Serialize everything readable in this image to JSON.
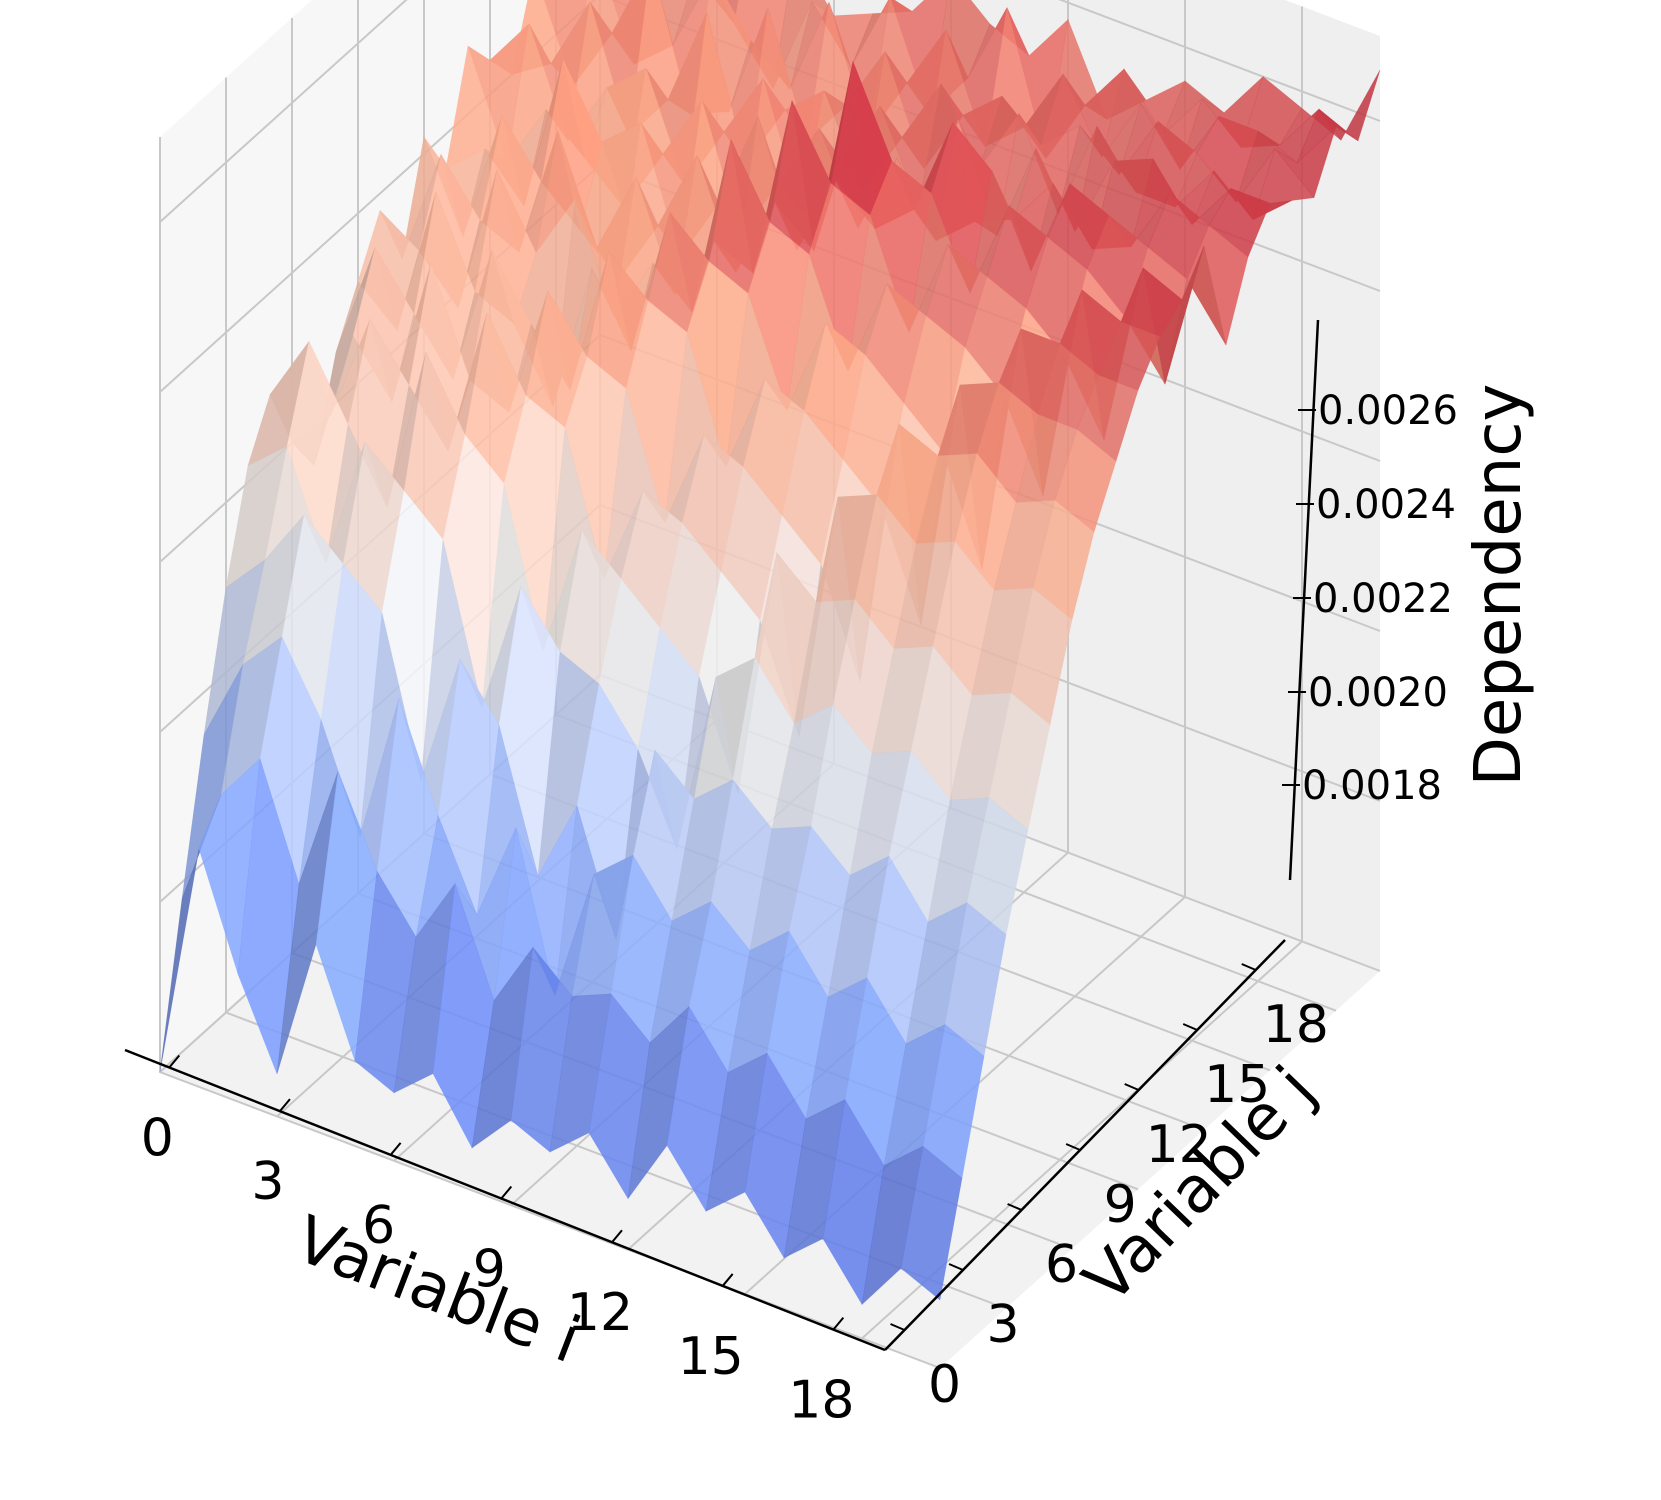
{
  "chart_data": {
    "type": "surface3d",
    "colormap": "coolwarm",
    "xlabel": "Variable i",
    "ylabel": "Variable j",
    "zlabel": "Dependency",
    "x_ticks": [
      "0",
      "3",
      "6",
      "9",
      "12",
      "15",
      "18"
    ],
    "y_ticks": [
      "0",
      "3",
      "6",
      "9",
      "12",
      "15",
      "18"
    ],
    "z_ticks": [
      "0.0018",
      "0.0020",
      "0.0022",
      "0.0024",
      "0.0026"
    ],
    "x": [
      0,
      1,
      2,
      3,
      4,
      5,
      6,
      7,
      8,
      9,
      10,
      11,
      12,
      13,
      14,
      15,
      16,
      17,
      18,
      19,
      20
    ],
    "y": [
      0,
      1,
      2,
      3,
      4,
      5,
      6,
      7,
      8,
      9,
      10,
      11,
      12,
      13,
      14,
      15,
      16,
      17,
      18,
      19,
      20
    ],
    "zlim": [
      0.0016,
      0.0027
    ],
    "z": [
      [
        0.0016,
        0.00178,
        0.00195,
        0.0021,
        0.00222,
        0.00228,
        0.0022,
        0.00215,
        0.00226,
        0.00232,
        0.00238,
        0.0023,
        0.00242,
        0.00236,
        0.00248,
        0.00244,
        0.0024,
        0.0025,
        0.00246,
        0.00254,
        0.00258
      ],
      [
        0.00188,
        0.00192,
        0.00205,
        0.00215,
        0.00226,
        0.00236,
        0.00225,
        0.00232,
        0.0024,
        0.00228,
        0.00235,
        0.00244,
        0.00232,
        0.0024,
        0.00236,
        0.0025,
        0.00243,
        0.00238,
        0.00252,
        0.00248,
        0.00256
      ],
      [
        0.00175,
        0.00198,
        0.0021,
        0.00222,
        0.00214,
        0.00228,
        0.00238,
        0.00226,
        0.00234,
        0.00246,
        0.0023,
        0.00238,
        0.00248,
        0.00235,
        0.00244,
        0.00238,
        0.00252,
        0.00246,
        0.0024,
        0.00252,
        0.0026
      ],
      [
        0.00165,
        0.00185,
        0.00202,
        0.00218,
        0.0023,
        0.0022,
        0.00232,
        0.00244,
        0.00228,
        0.00236,
        0.00248,
        0.00236,
        0.00242,
        0.00254,
        0.0024,
        0.00246,
        0.00238,
        0.00256,
        0.00244,
        0.0025,
        0.00252
      ],
      [
        0.00182,
        0.002,
        0.0019,
        0.00214,
        0.00226,
        0.0024,
        0.00226,
        0.00232,
        0.00245,
        0.00234,
        0.0024,
        0.00252,
        0.00238,
        0.00246,
        0.00236,
        0.0025,
        0.00244,
        0.0024,
        0.00254,
        0.00246,
        0.00258
      ],
      [
        0.0017,
        0.0019,
        0.00208,
        0.00196,
        0.00222,
        0.00232,
        0.00244,
        0.0023,
        0.00238,
        0.00226,
        0.00248,
        0.0024,
        0.00234,
        0.0025,
        0.00244,
        0.00238,
        0.00256,
        0.00242,
        0.00248,
        0.0024,
        0.00254
      ],
      [
        0.00168,
        0.00184,
        0.00196,
        0.00212,
        0.00204,
        0.00228,
        0.00236,
        0.00246,
        0.00232,
        0.00244,
        0.00236,
        0.0025,
        0.00242,
        0.00236,
        0.00252,
        0.00246,
        0.0024,
        0.00256,
        0.00244,
        0.00252,
        0.00248
      ],
      [
        0.00172,
        0.00192,
        0.00186,
        0.00206,
        0.0022,
        0.0021,
        0.00234,
        0.0024,
        0.0025,
        0.00236,
        0.00244,
        0.00238,
        0.00252,
        0.00244,
        0.00238,
        0.00254,
        0.00248,
        0.00242,
        0.00256,
        0.00246,
        0.0025
      ],
      [
        0.00165,
        0.0018,
        0.00198,
        0.0019,
        0.00214,
        0.00226,
        0.00218,
        0.00238,
        0.00246,
        0.00254,
        0.0024,
        0.00246,
        0.0024,
        0.00256,
        0.00246,
        0.0024,
        0.00252,
        0.00248,
        0.00242,
        0.00256,
        0.00252
      ],
      [
        0.0017,
        0.00188,
        0.0018,
        0.002,
        0.00212,
        0.00222,
        0.0023,
        0.00224,
        0.00244,
        0.0025,
        0.00262,
        0.00244,
        0.0025,
        0.00242,
        0.00254,
        0.00248,
        0.00242,
        0.00256,
        0.0025,
        0.00244,
        0.00258
      ],
      [
        0.00168,
        0.00184,
        0.00196,
        0.00186,
        0.00206,
        0.00218,
        0.00228,
        0.00236,
        0.0023,
        0.00248,
        0.00254,
        0.00266,
        0.00246,
        0.00252,
        0.00244,
        0.00256,
        0.0025,
        0.00244,
        0.00258,
        0.0025,
        0.00254
      ],
      [
        0.00172,
        0.00186,
        0.002,
        0.0021,
        0.00196,
        0.00214,
        0.00224,
        0.00234,
        0.00242,
        0.00236,
        0.00252,
        0.00258,
        0.0027,
        0.00248,
        0.00254,
        0.00246,
        0.00258,
        0.00252,
        0.00246,
        0.0026,
        0.00252
      ],
      [
        0.00166,
        0.00182,
        0.00194,
        0.00206,
        0.00218,
        0.00202,
        0.0022,
        0.0023,
        0.0024,
        0.00248,
        0.0024,
        0.00256,
        0.0026,
        0.00252,
        0.00246,
        0.00258,
        0.0025,
        0.00256,
        0.0025,
        0.00244,
        0.00258
      ],
      [
        0.00174,
        0.00188,
        0.00198,
        0.0021,
        0.00222,
        0.00232,
        0.00208,
        0.00226,
        0.00236,
        0.00246,
        0.00252,
        0.00244,
        0.00258,
        0.00264,
        0.0025,
        0.00246,
        0.00258,
        0.00252,
        0.00258,
        0.00252,
        0.00248
      ],
      [
        0.00168,
        0.00182,
        0.00194,
        0.00206,
        0.00216,
        0.00228,
        0.00238,
        0.00214,
        0.00232,
        0.00242,
        0.0025,
        0.00256,
        0.00248,
        0.0026,
        0.00252,
        0.00258,
        0.00248,
        0.00256,
        0.0025,
        0.00258,
        0.00252
      ],
      [
        0.00172,
        0.00186,
        0.00198,
        0.00208,
        0.0022,
        0.0023,
        0.0024,
        0.00246,
        0.0022,
        0.00238,
        0.00248,
        0.00254,
        0.0026,
        0.0025,
        0.00258,
        0.0025,
        0.0026,
        0.00252,
        0.00258,
        0.00252,
        0.00256
      ],
      [
        0.00166,
        0.0018,
        0.00192,
        0.00204,
        0.00216,
        0.00226,
        0.00236,
        0.00244,
        0.0025,
        0.00226,
        0.00244,
        0.00252,
        0.00258,
        0.00262,
        0.00252,
        0.0026,
        0.00254,
        0.0026,
        0.00252,
        0.00258,
        0.00254
      ],
      [
        0.0017,
        0.00184,
        0.00196,
        0.00208,
        0.00218,
        0.00228,
        0.00238,
        0.00246,
        0.00252,
        0.00256,
        0.00234,
        0.00248,
        0.00256,
        0.0026,
        0.00254,
        0.00262,
        0.00254,
        0.00258,
        0.0026,
        0.00254,
        0.0026
      ],
      [
        0.00164,
        0.00178,
        0.0019,
        0.00202,
        0.00214,
        0.00224,
        0.00234,
        0.00242,
        0.0025,
        0.00256,
        0.0026,
        0.0024,
        0.00252,
        0.00258,
        0.00262,
        0.00256,
        0.0026,
        0.00254,
        0.0026,
        0.00256,
        0.00258
      ],
      [
        0.0017,
        0.00182,
        0.00194,
        0.00206,
        0.00216,
        0.00226,
        0.00236,
        0.00244,
        0.0025,
        0.00254,
        0.00258,
        0.00262,
        0.00246,
        0.00256,
        0.0026,
        0.00262,
        0.00256,
        0.00262,
        0.00258,
        0.00262,
        0.00256
      ],
      [
        0.00168,
        0.0018,
        0.00192,
        0.00204,
        0.00214,
        0.00224,
        0.00234,
        0.00242,
        0.00248,
        0.00254,
        0.00258,
        0.0026,
        0.00264,
        0.0025,
        0.00258,
        0.00262,
        0.0026,
        0.00258,
        0.00264,
        0.0026,
        0.00266
      ]
    ]
  }
}
